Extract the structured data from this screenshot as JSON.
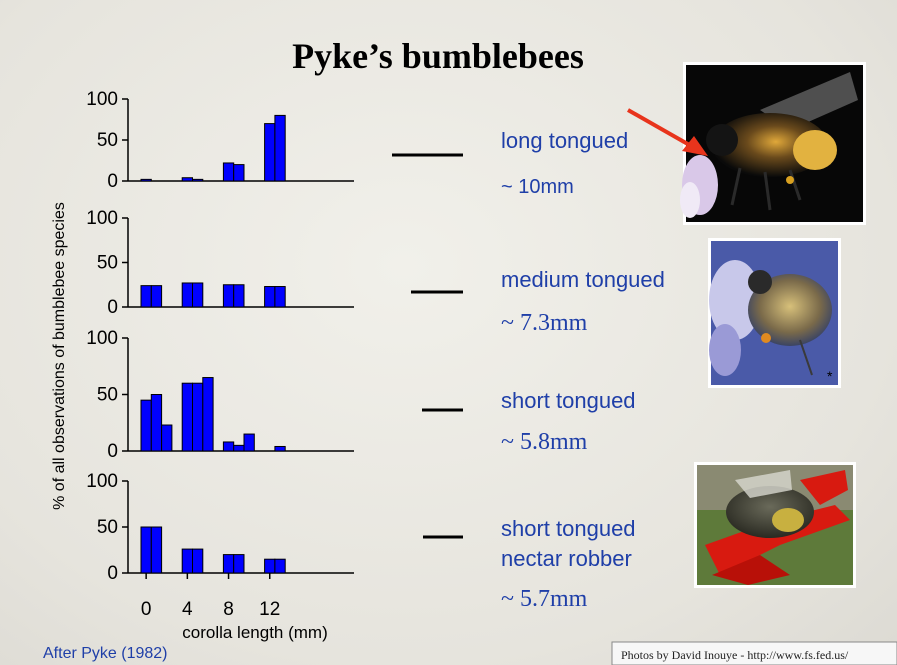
{
  "title": "Pyke’s bumblebees",
  "ylabel": "% of all observations of bumblebee species",
  "xlabel": "corolla length (mm)",
  "source": "After Pyke (1982)",
  "photo_credit": "Photos by David Inouye - http://www.fs.fed.us/",
  "photo_star": "*",
  "colors": {
    "bar": "#0000ff",
    "text_blue": "#1f3fa8",
    "title": "#000000"
  },
  "icons": [
    "red-arrow-icon",
    "bee-photo"
  ],
  "chart_data": [
    {
      "type": "bar",
      "title": "",
      "ylim": [
        0,
        100
      ],
      "yticks": [
        "0",
        "50",
        "100"
      ],
      "bins": [
        0,
        1,
        2,
        3,
        4,
        5,
        6,
        7,
        8,
        9,
        10,
        11,
        12,
        13
      ],
      "values": [
        2,
        0,
        0,
        0,
        4,
        2,
        0,
        0,
        22,
        20,
        0,
        0,
        70,
        80
      ]
    },
    {
      "type": "bar",
      "title": "",
      "ylim": [
        0,
        100
      ],
      "yticks": [
        "0",
        "50",
        "100"
      ],
      "bins": [
        0,
        1,
        2,
        3,
        4,
        5,
        6,
        7,
        8,
        9,
        10,
        11,
        12,
        13
      ],
      "values": [
        24,
        24,
        0,
        0,
        27,
        27,
        0,
        0,
        25,
        25,
        0,
        0,
        23,
        23
      ]
    },
    {
      "type": "bar",
      "title": "",
      "ylim": [
        0,
        100
      ],
      "yticks": [
        "0",
        "50",
        "100"
      ],
      "bins": [
        0,
        1,
        2,
        3,
        4,
        5,
        6,
        7,
        8,
        9,
        10,
        11,
        12,
        13
      ],
      "values": [
        45,
        50,
        23,
        0,
        60,
        60,
        65,
        0,
        8,
        5,
        15,
        0,
        0,
        4
      ]
    },
    {
      "type": "bar",
      "title": "",
      "ylim": [
        0,
        100
      ],
      "yticks": [
        "0",
        "50",
        "100"
      ],
      "xticks": [
        "0",
        "4",
        "8",
        "12"
      ],
      "bins": [
        0,
        1,
        2,
        3,
        4,
        5,
        6,
        7,
        8,
        9,
        10,
        11,
        12,
        13
      ],
      "values": [
        50,
        50,
        0,
        0,
        26,
        26,
        0,
        0,
        20,
        20,
        0,
        0,
        15,
        15
      ]
    }
  ],
  "species": [
    {
      "name": "long tongued",
      "length": "~ 10mm"
    },
    {
      "name": "medium tongued",
      "length": "~ 7.3mm"
    },
    {
      "name": "short tongued",
      "length": "~ 5.8mm"
    },
    {
      "name": "short tongued\nnectar robber",
      "name_line1": "short tongued",
      "name_line2": "nectar robber",
      "length": "~ 5.7mm"
    }
  ]
}
